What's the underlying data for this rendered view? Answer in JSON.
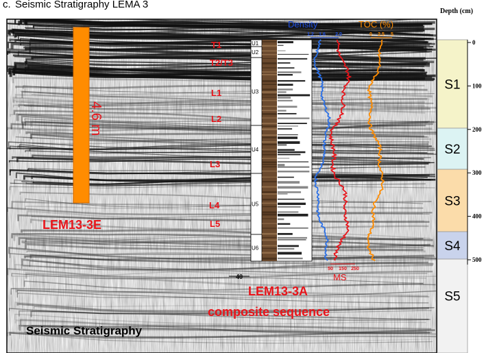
{
  "panel_label": "c.",
  "title": "Seismic Stratigraphy LEMA 3",
  "seismic": {
    "label": "Seismic Stratigraphy",
    "core_site": "LEM13-3E",
    "core_length": "4.6 m",
    "reflectors": [
      "T1",
      "T2/T3",
      "L1",
      "L2",
      "L3",
      "L4",
      "L5"
    ],
    "scale_label": "40"
  },
  "composite": {
    "site": "LEM13-3A",
    "label": "composite sequence",
    "units": [
      "U1",
      "U2",
      "U3",
      "U4",
      "U5",
      "U6"
    ],
    "density": {
      "label": "Density",
      "ticks": [
        "1.2",
        "1.6",
        "2.0"
      ]
    },
    "toc": {
      "label": "TOC (%)",
      "ticks": [
        "0",
        "2.5",
        "5"
      ]
    },
    "ms": {
      "label": "MS",
      "ticks": [
        "50",
        "150",
        "250"
      ]
    }
  },
  "stratigraphy": {
    "units": [
      "S1",
      "S2",
      "S3",
      "S4",
      "S5"
    ]
  },
  "depth_axis": {
    "label": "Depth (cm)",
    "ticks": [
      0,
      100,
      200,
      300,
      400,
      500
    ]
  }
}
